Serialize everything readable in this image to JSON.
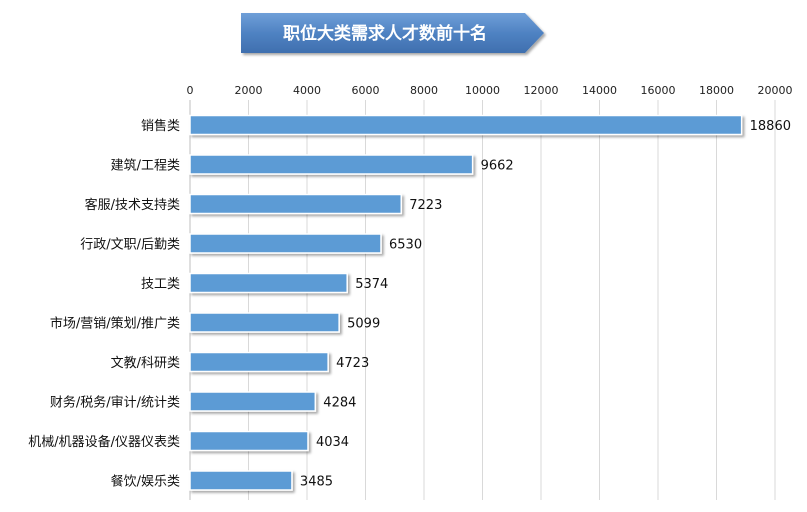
{
  "chart_data": {
    "type": "bar",
    "orientation": "horizontal",
    "title": "职位大类需求人才数前十名",
    "categories": [
      "销售类",
      "建筑/工程类",
      "客服/技术支持类",
      "行政/文职/后勤类",
      "技工类",
      "市场/营销/策划/推广类",
      "文教/科研类",
      "财务/税务/审计/统计类",
      "机械/机器设备/仪器仪表类",
      "餐饮/娱乐类"
    ],
    "values": [
      18860,
      9662,
      7223,
      6530,
      5374,
      5099,
      4723,
      4284,
      4034,
      3485
    ],
    "xlim": [
      0,
      20000
    ],
    "xticks": [
      0,
      2000,
      4000,
      6000,
      8000,
      10000,
      12000,
      14000,
      16000,
      18000,
      20000
    ],
    "grid": true,
    "xaxis_position": "top",
    "colors": {
      "bar": "#5b9bd5",
      "title_banner": "#4a7ebb",
      "grid": "#d9d9d9"
    }
  }
}
